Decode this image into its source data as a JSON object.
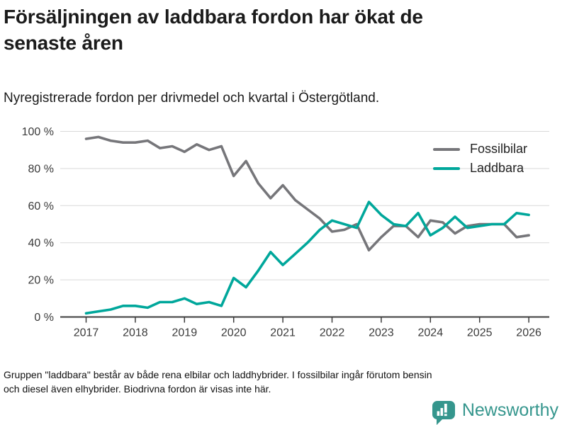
{
  "chart_data": {
    "type": "line",
    "title": "Försäljningen av laddbara fordon har ökat de senaste åren",
    "subtitle": "Nyregistrerade fordon per drivmedel och kvartal i Östergötland.",
    "frequency": "quarterly",
    "x_start": "2017 Q1",
    "x_end": "2026 Q1",
    "x_tick_labels": [
      "2017",
      "2018",
      "2019",
      "2020",
      "2021",
      "2022",
      "2023",
      "2024",
      "2025",
      "2026"
    ],
    "y_tick_labels": [
      "0 %",
      "20 %",
      "40 %",
      "60 %",
      "80 %",
      "100 %"
    ],
    "ylim": [
      0,
      100
    ],
    "y_unit": "%",
    "grid": true,
    "legend_position": "top-right",
    "series": [
      {
        "name": "Fossilbilar",
        "color": "#76767a",
        "values": [
          96,
          97,
          95,
          94,
          94,
          95,
          91,
          92,
          89,
          93,
          90,
          92,
          76,
          84,
          72,
          64,
          71,
          63,
          58,
          53,
          46,
          47,
          50,
          36,
          43,
          49,
          49,
          43,
          52,
          51,
          45,
          49,
          50,
          50,
          50,
          43,
          44
        ]
      },
      {
        "name": "Laddbara",
        "color": "#00a79b",
        "values": [
          2,
          3,
          4,
          6,
          6,
          5,
          8,
          8,
          10,
          7,
          8,
          6,
          21,
          16,
          25,
          35,
          28,
          34,
          40,
          47,
          52,
          50,
          48,
          62,
          55,
          50,
          49,
          56,
          44,
          48,
          54,
          48,
          49,
          50,
          50,
          56,
          55
        ]
      }
    ]
  },
  "footer": {
    "lines": [
      "Gruppen \"laddbara\" består av både rena elbilar och laddhybrider. I fossilbilar ingår förutom bensin",
      "och diesel även elhybrider. Biodrivna fordon är visas inte här."
    ]
  },
  "brand": {
    "name": "Newsworthy",
    "color": "#35968d",
    "icon": "newsworthy-speech-bubble-bar-chart-icon"
  }
}
